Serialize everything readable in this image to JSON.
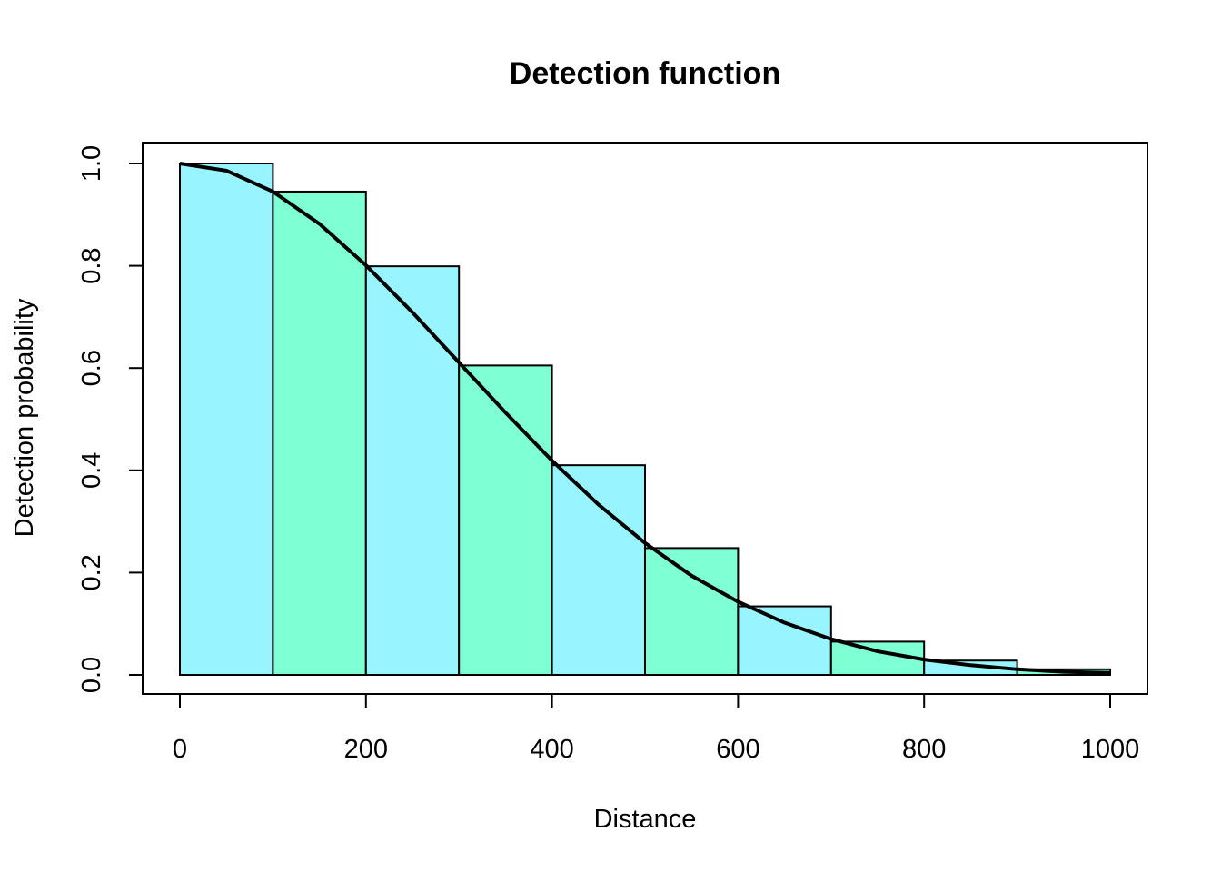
{
  "chart_data": {
    "type": "bar",
    "title": "Detection function",
    "xlabel": "Distance",
    "ylabel": "Detection probability",
    "xlim": [
      0,
      1000
    ],
    "ylim": [
      0,
      1.0
    ],
    "x_ticks": [
      "0",
      "200",
      "400",
      "600",
      "800",
      "1000"
    ],
    "y_ticks": [
      "0.0",
      "0.2",
      "0.4",
      "0.6",
      "0.8",
      "1.0"
    ],
    "grid": false,
    "bins": [
      {
        "from": 0,
        "to": 100,
        "value": 1.0
      },
      {
        "from": 100,
        "to": 200,
        "value": 0.945
      },
      {
        "from": 200,
        "to": 300,
        "value": 0.799
      },
      {
        "from": 300,
        "to": 400,
        "value": 0.605
      },
      {
        "from": 400,
        "to": 500,
        "value": 0.41
      },
      {
        "from": 500,
        "to": 600,
        "value": 0.248
      },
      {
        "from": 600,
        "to": 700,
        "value": 0.134
      },
      {
        "from": 700,
        "to": 800,
        "value": 0.065
      },
      {
        "from": 800,
        "to": 900,
        "value": 0.028
      },
      {
        "from": 900,
        "to": 1000,
        "value": 0.011
      }
    ],
    "bar_colors": [
      "#98F5FF",
      "#7FFFD4"
    ],
    "curve": {
      "x": [
        0,
        50,
        100,
        150,
        200,
        250,
        300,
        350,
        400,
        450,
        500,
        550,
        600,
        650,
        700,
        750,
        800,
        850,
        900,
        950,
        1000
      ],
      "y": [
        1.0,
        0.986,
        0.945,
        0.882,
        0.801,
        0.709,
        0.611,
        0.513,
        0.419,
        0.333,
        0.258,
        0.194,
        0.143,
        0.102,
        0.07,
        0.046,
        0.03,
        0.019,
        0.011,
        0.006,
        0.004
      ],
      "color": "#000000"
    }
  }
}
